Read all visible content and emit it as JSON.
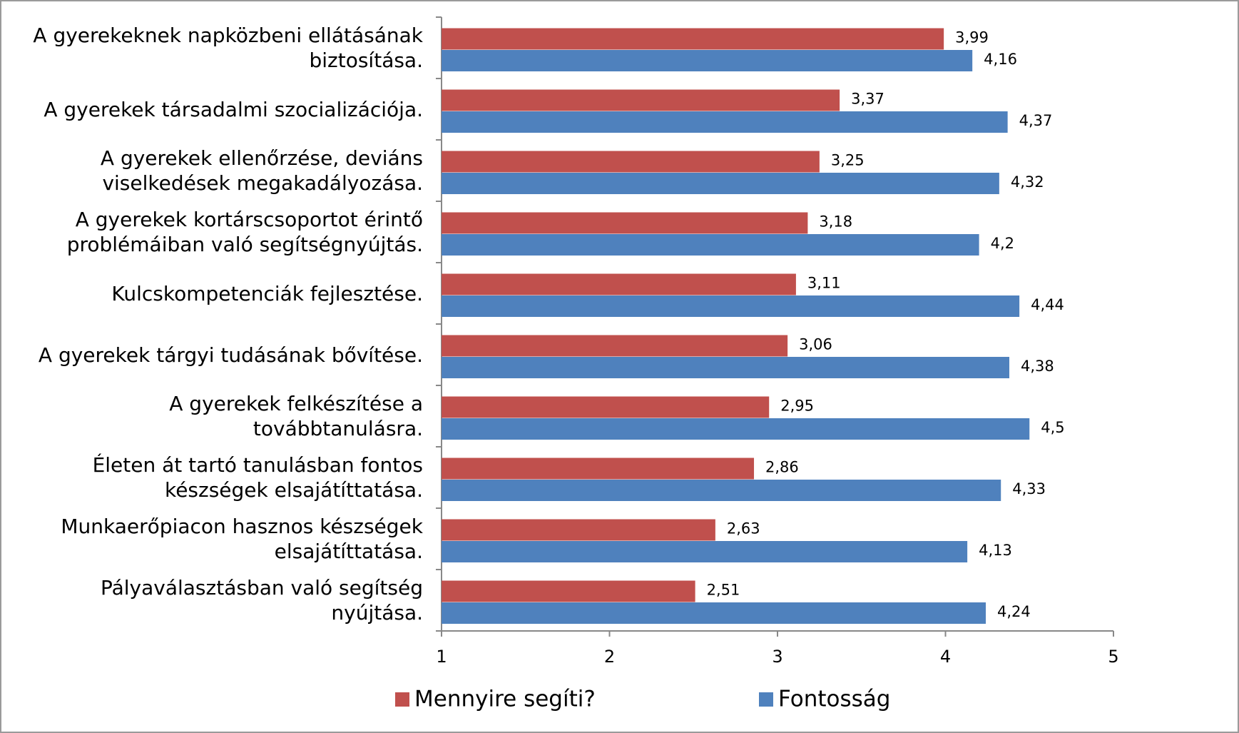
{
  "chart_data": {
    "type": "bar",
    "orientation": "horizontal",
    "categories": [
      "A gyerekeknek napközbeni ellátásának biztosítása.",
      "A gyerekek társadalmi szocializációja.",
      "A gyerekek ellenőrzése, deviáns viselkedések megakadályozása.",
      "A gyerekek kortárscsoportot érintő problémáiban való segítségnyújtás.",
      "Kulcskompetenciák fejlesztése.",
      "A gyerekek tárgyi tudásának bővítése.",
      "A gyerekek felkészítése a továbbtanulásra.",
      "Életen át tartó tanulásban fontos készségek elsajátíttatása.",
      "Munkaerőpiacon hasznos készségek elsajátíttatása.",
      "Pályaválasztásban való segítség nyújtása."
    ],
    "series": [
      {
        "name": "Mennyire segíti?",
        "color": "#c0504d",
        "values": [
          3.99,
          3.37,
          3.25,
          3.18,
          3.11,
          3.06,
          2.95,
          2.86,
          2.63,
          2.51
        ],
        "value_labels": [
          "3,99",
          "3,37",
          "3,25",
          "3,18",
          "3,11",
          "3,06",
          "2,95",
          "2,86",
          "2,63",
          "2,51"
        ]
      },
      {
        "name": "Fontosság",
        "color": "#4f81bd",
        "values": [
          4.16,
          4.37,
          4.32,
          4.2,
          4.44,
          4.38,
          4.5,
          4.33,
          4.13,
          4.24
        ],
        "value_labels": [
          "4,16",
          "4,37",
          "4,32",
          "4,2",
          "4,44",
          "4,38",
          "4,5",
          "4,33",
          "4,13",
          "4,24"
        ]
      }
    ],
    "xlim": [
      1,
      5
    ],
    "xticks": [
      1,
      2,
      3,
      4,
      5
    ],
    "legend": "bottom"
  }
}
